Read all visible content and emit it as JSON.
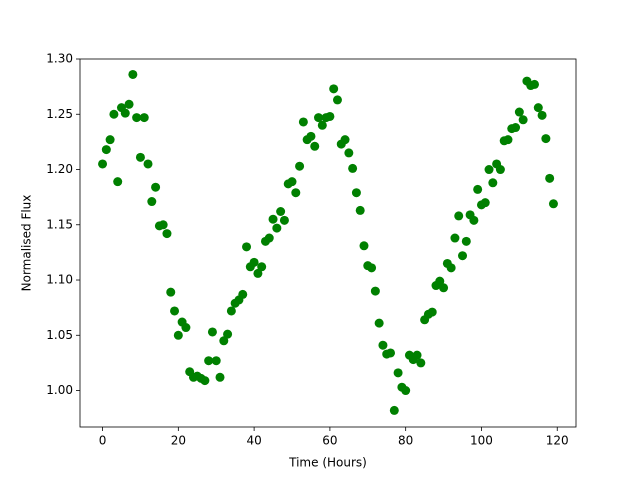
{
  "chart_data": {
    "type": "scatter",
    "x_label": "Time (Hours)",
    "y_label": "Normalised Flux",
    "color": "#008000",
    "x": [
      0,
      1,
      2,
      3,
      4,
      5,
      6,
      7,
      8,
      9,
      10,
      11,
      12,
      13,
      14,
      15,
      16,
      17,
      18,
      19,
      20,
      21,
      22,
      23,
      24,
      25,
      26,
      27,
      28,
      29,
      30,
      31,
      32,
      33,
      34,
      35,
      36,
      37,
      38,
      39,
      40,
      41,
      42,
      43,
      44,
      45,
      46,
      47,
      48,
      49,
      50,
      51,
      52,
      53,
      54,
      55,
      56,
      57,
      58,
      59,
      60,
      61,
      62,
      63,
      64,
      65,
      66,
      67,
      68,
      69,
      70,
      71,
      72,
      73,
      74,
      75,
      76,
      77,
      78,
      79,
      80,
      81,
      82,
      83,
      84,
      85,
      86,
      87,
      88,
      89,
      90,
      91,
      92,
      93,
      94,
      95,
      96,
      97,
      98,
      99,
      100,
      101,
      102,
      103,
      104,
      105,
      106,
      107,
      108,
      109,
      110,
      111,
      112,
      113,
      114,
      115,
      116,
      117,
      118,
      119
    ],
    "values": [
      1.205,
      1.218,
      1.227,
      1.25,
      1.189,
      1.256,
      1.251,
      1.259,
      1.286,
      1.247,
      1.211,
      1.247,
      1.205,
      1.171,
      1.184,
      1.149,
      1.15,
      1.142,
      1.089,
      1.072,
      1.05,
      1.062,
      1.057,
      1.017,
      1.012,
      1.013,
      1.011,
      1.009,
      1.027,
      1.053,
      1.027,
      1.012,
      1.045,
      1.051,
      1.072,
      1.079,
      1.082,
      1.087,
      1.13,
      1.112,
      1.116,
      1.106,
      1.112,
      1.135,
      1.138,
      1.155,
      1.147,
      1.162,
      1.154,
      1.187,
      1.189,
      1.179,
      1.203,
      1.243,
      1.227,
      1.23,
      1.221,
      1.247,
      1.24,
      1.247,
      1.248,
      1.273,
      1.263,
      1.223,
      1.227,
      1.215,
      1.201,
      1.179,
      1.163,
      1.131,
      1.113,
      1.111,
      1.09,
      1.061,
      1.041,
      1.033,
      1.034,
      0.982,
      1.016,
      1.003,
      1.0,
      1.032,
      1.028,
      1.032,
      1.025,
      1.064,
      1.069,
      1.071,
      1.095,
      1.099,
      1.093,
      1.115,
      1.111,
      1.138,
      1.158,
      1.122,
      1.135,
      1.159,
      1.154,
      1.182,
      1.168,
      1.17,
      1.2,
      1.188,
      1.205,
      1.2,
      1.226,
      1.227,
      1.237,
      1.238,
      1.252,
      1.245,
      1.28,
      1.276,
      1.277,
      1.256,
      1.249,
      1.228,
      1.192,
      1.169
    ],
    "xlim": [
      -5.95,
      124.95
    ],
    "ylim": [
      0.967,
      1.3
    ],
    "xticks": [
      0,
      20,
      40,
      60,
      80,
      100,
      120
    ],
    "yticks": [
      {
        "value": 1,
        "label": "1.00"
      },
      {
        "value": 1.05,
        "label": "1.05"
      },
      {
        "value": 1.1,
        "label": "1.10"
      },
      {
        "value": 1.15,
        "label": "1.15"
      },
      {
        "value": 1.2,
        "label": "1.20"
      },
      {
        "value": 1.25,
        "label": "1.25"
      },
      {
        "value": 1.3,
        "label": "1.30"
      }
    ]
  }
}
